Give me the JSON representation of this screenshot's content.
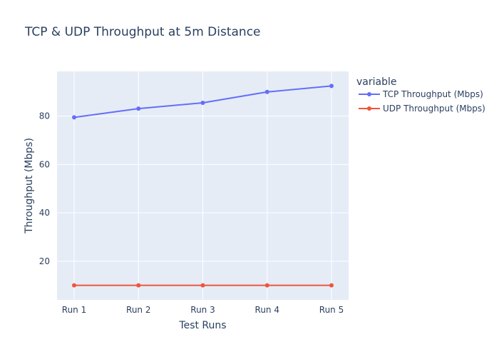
{
  "chart_data": {
    "type": "line",
    "title": "TCP & UDP Throughput at 5m Distance",
    "xlabel": "Test Runs",
    "ylabel": "Throughput (Mbps)",
    "categories": [
      "Run 1",
      "Run 2",
      "Run 3",
      "Run 4",
      "Run 5"
    ],
    "ylim": [
      4,
      98.5
    ],
    "yticks": [
      20,
      40,
      60,
      80
    ],
    "grid": true,
    "legend": {
      "title": "variable",
      "position": "top-right"
    },
    "series": [
      {
        "name": "TCP Throughput (Mbps)",
        "values": [
          79.5,
          83.1,
          85.5,
          90.0,
          92.5
        ],
        "color": "#636efa"
      },
      {
        "name": "UDP Throughput (Mbps)",
        "values": [
          10,
          10,
          10,
          10,
          10
        ],
        "color": "#ef553b"
      }
    ],
    "plot_background": "#e5ecf6",
    "text_color": "#2a3f5f"
  }
}
